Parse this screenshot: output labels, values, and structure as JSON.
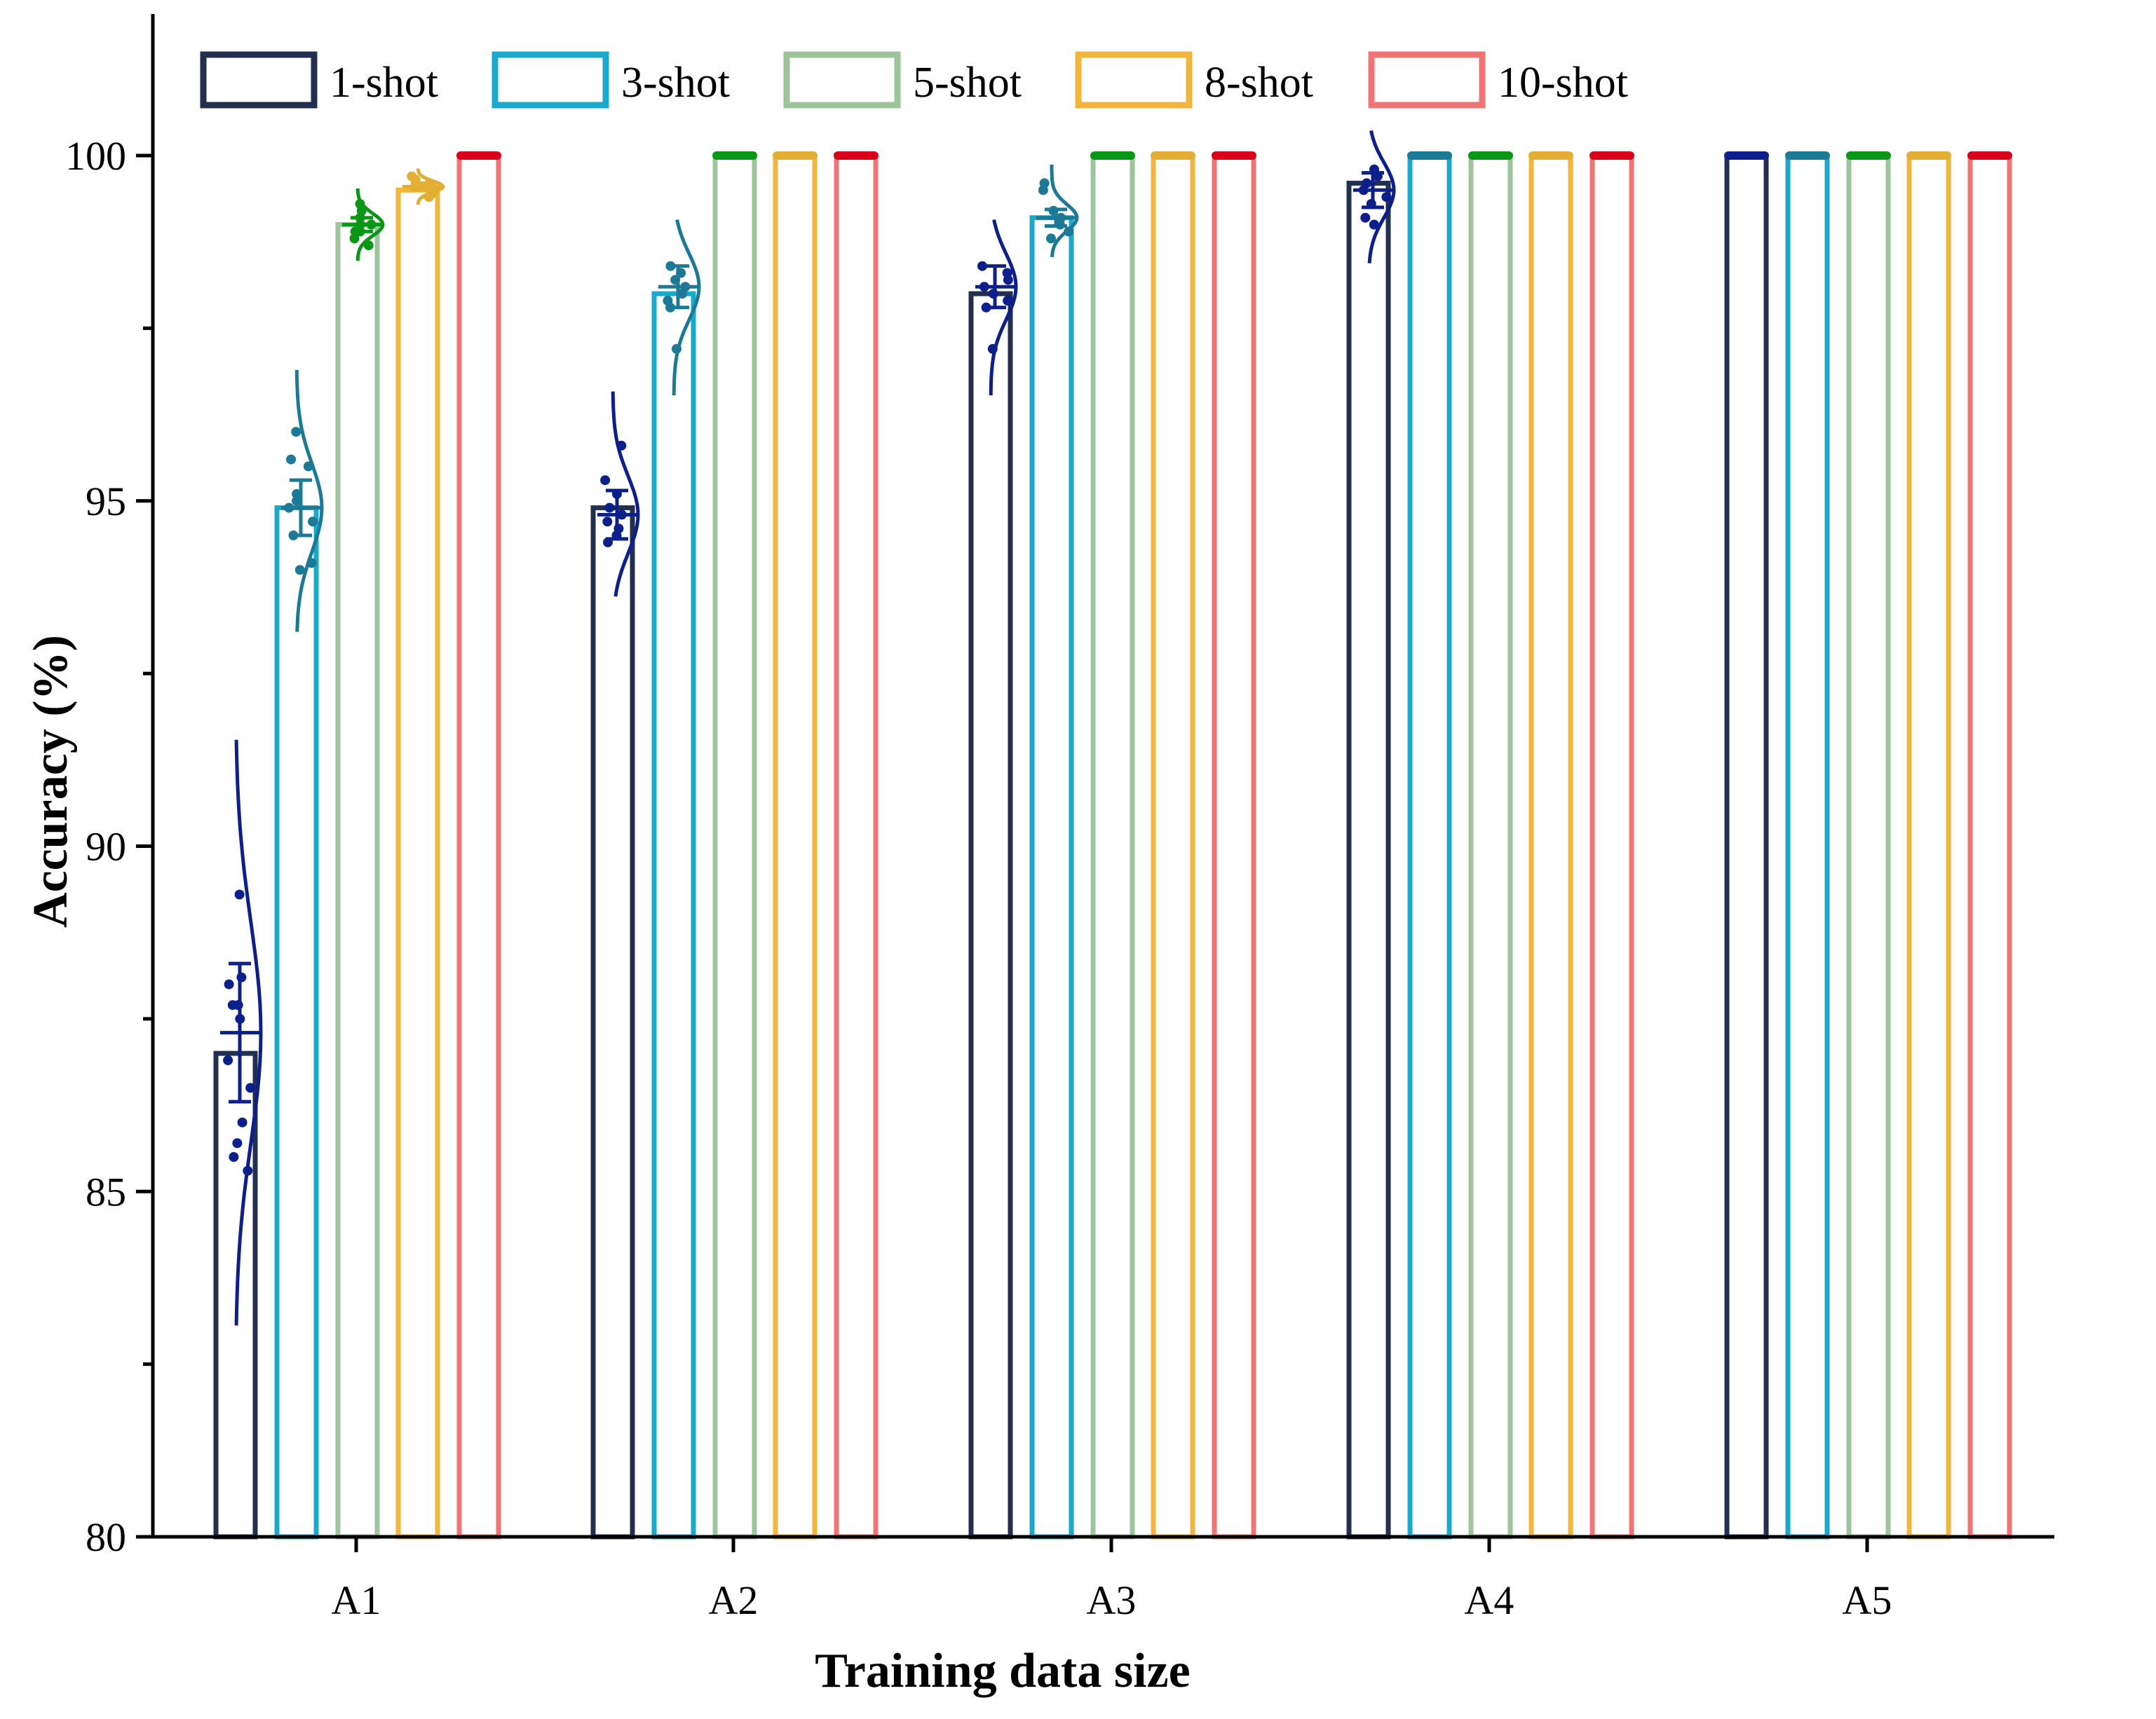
{
  "chart_data": {
    "type": "bar",
    "title": "",
    "xlabel": "Training data size",
    "ylabel": "Accuracy (%)",
    "categories": [
      "A1",
      "A2",
      "A3",
      "A4",
      "A5"
    ],
    "ylim": [
      80,
      102
    ],
    "yticks": [
      80,
      85,
      90,
      95,
      100
    ],
    "legend_position": "top",
    "series": [
      {
        "name": "1-shot",
        "color": "#232f4f",
        "scatter_color": "#0d1f8a",
        "values": [
          87.0,
          94.9,
          98.0,
          99.6,
          100.0
        ],
        "means": [
          87.3,
          94.8,
          98.1,
          99.5,
          100.0
        ],
        "err": [
          1.0,
          0.35,
          0.3,
          0.25,
          0.0
        ],
        "points": [
          [
            89.3,
            88.1,
            88.0,
            87.7,
            87.7,
            87.5,
            86.9,
            86.5,
            86.0,
            85.7,
            85.5,
            85.3
          ],
          [
            95.8,
            95.3,
            95.1,
            94.9,
            94.8,
            94.7,
            94.6,
            94.5,
            94.4
          ],
          [
            98.4,
            98.3,
            98.2,
            98.1,
            98.0,
            97.9,
            97.8,
            97.2
          ],
          [
            99.8,
            99.7,
            99.6,
            99.5,
            99.4,
            99.3,
            99.1,
            99.0
          ],
          [
            100,
            100,
            100,
            100,
            100
          ]
        ]
      },
      {
        "name": "3-shot",
        "color": "#18a9cc",
        "scatter_color": "#1c7a96",
        "values": [
          94.9,
          98.0,
          99.1,
          100.0,
          100.0
        ],
        "means": [
          94.9,
          98.1,
          99.1,
          100.0,
          100.0
        ],
        "err": [
          0.4,
          0.3,
          0.12,
          0.0,
          0.0
        ],
        "points": [
          [
            96.0,
            95.6,
            95.5,
            95.1,
            95.0,
            94.9,
            94.7,
            94.5,
            94.1,
            94.0
          ],
          [
            98.4,
            98.3,
            98.2,
            98.1,
            98.0,
            97.9,
            97.8,
            97.2
          ],
          [
            99.6,
            99.5,
            99.2,
            99.1,
            99.0,
            98.9,
            98.8
          ],
          [
            100,
            100,
            100,
            100,
            100
          ],
          [
            100,
            100,
            100,
            100,
            100
          ]
        ]
      },
      {
        "name": "5-shot",
        "color": "#9dc49b",
        "scatter_color": "#0a9616",
        "values": [
          99.0,
          100.0,
          100.0,
          100.0,
          100.0
        ],
        "means": [
          99.0,
          100.0,
          100.0,
          100.0,
          100.0
        ],
        "err": [
          0.1,
          0.0,
          0.0,
          0.0,
          0.0
        ],
        "points": [
          [
            99.3,
            99.2,
            99.1,
            99.0,
            99.0,
            98.9,
            98.9,
            98.8,
            98.7
          ],
          [
            100,
            100,
            100,
            100,
            100
          ],
          [
            100,
            100,
            100,
            100,
            100
          ],
          [
            100,
            100,
            100,
            100,
            100
          ],
          [
            100,
            100,
            100,
            100,
            100
          ]
        ]
      },
      {
        "name": "8-shot",
        "color": "#f3b63c",
        "scatter_color": "#e2ae33",
        "values": [
          99.5,
          100.0,
          100.0,
          100.0,
          100.0
        ],
        "means": [
          99.55,
          100.0,
          100.0,
          100.0,
          100.0
        ],
        "err": [
          0.05,
          0.0,
          0.0,
          0.0,
          0.0
        ],
        "points": [
          [
            99.7,
            99.65,
            99.6,
            99.55,
            99.5,
            99.5,
            99.45,
            99.4
          ],
          [
            100,
            100,
            100,
            100,
            100
          ],
          [
            100,
            100,
            100,
            100,
            100
          ],
          [
            100,
            100,
            100,
            100,
            100
          ],
          [
            100,
            100,
            100,
            100,
            100
          ]
        ]
      },
      {
        "name": "10-shot",
        "color": "#f27374",
        "scatter_color": "#d6001a",
        "values": [
          100.0,
          100.0,
          100.0,
          100.0,
          100.0
        ],
        "means": [
          100.0,
          100.0,
          100.0,
          100.0,
          100.0
        ],
        "err": [
          0.0,
          0.0,
          0.0,
          0.0,
          0.0
        ],
        "points": [
          [
            100,
            100,
            100,
            100,
            100
          ],
          [
            100,
            100,
            100,
            100,
            100
          ],
          [
            100,
            100,
            100,
            100,
            100
          ],
          [
            100,
            100,
            100,
            100,
            100
          ],
          [
            100,
            100,
            100,
            100,
            100
          ]
        ]
      }
    ],
    "grid": false
  }
}
